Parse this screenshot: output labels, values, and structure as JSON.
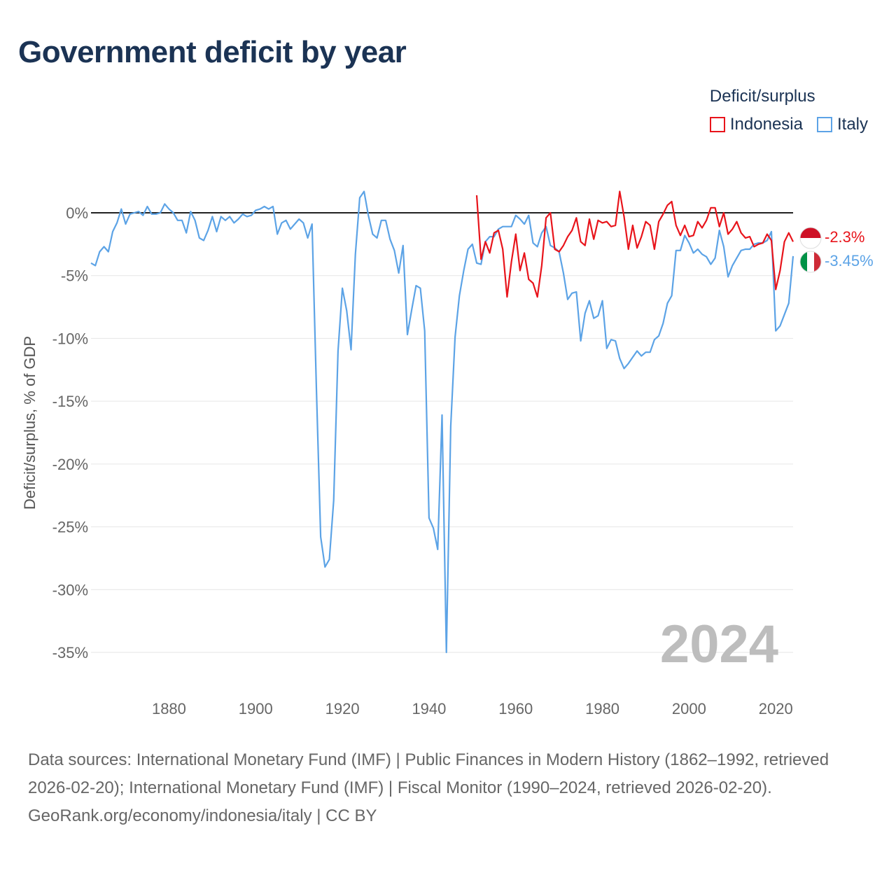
{
  "title": "Government deficit by year",
  "legend": {
    "title": "Deficit/surplus",
    "items": [
      {
        "name": "Indonesia",
        "color": "#e8141b"
      },
      {
        "name": "Italy",
        "color": "#5ca3e6"
      }
    ]
  },
  "year_label": "2024",
  "footer": {
    "sources": "Data sources: International Monetary Fund (IMF) | Public Finances in Modern History (1862–1992, retrieved 2026-02-20); International Monetary Fund (IMF) | Fiscal Monitor (1990–2024, retrieved 2026-02-20).",
    "attribution": "GeoRank.org/economy/indonesia/italy | CC BY"
  },
  "chart_data": {
    "type": "line",
    "title": "Government deficit by year",
    "ylabel": "Deficit/surplus, % of GDP",
    "xlabel": "",
    "xlim": [
      1862,
      2024
    ],
    "ylim": [
      -37,
      3
    ],
    "xticks": [
      1880,
      1900,
      1920,
      1940,
      1960,
      1980,
      2000,
      2020
    ],
    "xtick_labels": [
      "1880",
      "1900",
      "1920",
      "1940",
      "1960",
      "1980",
      "2000",
      "2020"
    ],
    "yticks": [
      0,
      -5,
      -10,
      -15,
      -20,
      -25,
      -30,
      -35
    ],
    "ytick_labels": [
      "0%",
      "-5%",
      "-10%",
      "-15%",
      "-20%",
      "-25%",
      "-30%",
      "-35%"
    ],
    "grid": true,
    "legend_position": "top-right",
    "series": [
      {
        "name": "Italy",
        "color": "#5ca3e6",
        "end_label": "-3.45%",
        "x": [
          1862,
          1863,
          1864,
          1865,
          1866,
          1867,
          1868,
          1869,
          1870,
          1871,
          1872,
          1873,
          1874,
          1875,
          1876,
          1877,
          1878,
          1879,
          1880,
          1881,
          1882,
          1883,
          1884,
          1885,
          1886,
          1887,
          1888,
          1889,
          1890,
          1891,
          1892,
          1893,
          1894,
          1895,
          1896,
          1897,
          1898,
          1899,
          1900,
          1901,
          1902,
          1903,
          1904,
          1905,
          1906,
          1907,
          1908,
          1909,
          1910,
          1911,
          1912,
          1913,
          1914,
          1915,
          1916,
          1917,
          1918,
          1919,
          1920,
          1921,
          1922,
          1923,
          1924,
          1925,
          1926,
          1927,
          1928,
          1929,
          1930,
          1931,
          1932,
          1933,
          1934,
          1935,
          1936,
          1937,
          1938,
          1939,
          1940,
          1941,
          1942,
          1943,
          1944,
          1945,
          1946,
          1947,
          1948,
          1949,
          1950,
          1951,
          1952,
          1953,
          1954,
          1955,
          1956,
          1957,
          1958,
          1959,
          1960,
          1961,
          1962,
          1963,
          1964,
          1965,
          1966,
          1967,
          1968,
          1969,
          1970,
          1971,
          1972,
          1973,
          1974,
          1975,
          1976,
          1977,
          1978,
          1979,
          1980,
          1981,
          1982,
          1983,
          1984,
          1985,
          1986,
          1987,
          1988,
          1989,
          1990,
          1991,
          1992,
          1993,
          1994,
          1995,
          1996,
          1997,
          1998,
          1999,
          2000,
          2001,
          2002,
          2003,
          2004,
          2005,
          2006,
          2007,
          2008,
          2009,
          2010,
          2011,
          2012,
          2013,
          2014,
          2015,
          2016,
          2017,
          2018,
          2019,
          2020,
          2021,
          2022,
          2023,
          2024
        ],
        "y": [
          -4.0,
          -4.2,
          -3.1,
          -2.7,
          -3.1,
          -1.5,
          -0.8,
          0.3,
          -0.9,
          -0.1,
          0.0,
          0.1,
          -0.2,
          0.5,
          -0.1,
          -0.1,
          0.0,
          0.7,
          0.3,
          0.0,
          -0.6,
          -0.6,
          -1.6,
          0.1,
          -0.6,
          -2.0,
          -2.2,
          -1.4,
          -0.3,
          -1.5,
          -0.3,
          -0.6,
          -0.3,
          -0.8,
          -0.5,
          -0.1,
          -0.3,
          -0.2,
          0.2,
          0.3,
          0.5,
          0.3,
          0.5,
          -1.7,
          -0.8,
          -0.6,
          -1.3,
          -0.9,
          -0.5,
          -0.8,
          -2.0,
          -0.9,
          -14.0,
          -25.8,
          -28.2,
          -27.6,
          -22.9,
          -11.0,
          -6.0,
          -7.8,
          -10.9,
          -3.3,
          1.2,
          1.7,
          -0.2,
          -1.7,
          -2.0,
          -0.6,
          -0.6,
          -2.1,
          -3.0,
          -4.8,
          -2.6,
          -9.7,
          -7.7,
          -5.8,
          -6.0,
          -9.4,
          -24.3,
          -25.1,
          -26.8,
          -16.1,
          -35.0,
          -17.0,
          -9.9,
          -6.6,
          -4.6,
          -2.9,
          -2.5,
          -4.0,
          -4.1,
          -2.3,
          -1.9,
          -1.9,
          -1.3,
          -1.1,
          -1.1,
          -1.1,
          -0.2,
          -0.5,
          -0.9,
          -0.2,
          -2.4,
          -2.7,
          -1.6,
          -1.1,
          -2.6,
          -2.8,
          -3.1,
          -4.8,
          -6.9,
          -6.4,
          -6.3,
          -10.2,
          -8.0,
          -7.0,
          -8.4,
          -8.2,
          -7.0,
          -10.8,
          -10.1,
          -10.2,
          -11.6,
          -12.4,
          -12.0,
          -11.5,
          -11.0,
          -11.4,
          -11.1,
          -11.1,
          -10.1,
          -9.8,
          -8.8,
          -7.2,
          -6.6,
          -3.0,
          -3.0,
          -1.8,
          -2.4,
          -3.2,
          -2.9,
          -3.3,
          -3.5,
          -4.1,
          -3.6,
          -1.4,
          -2.7,
          -5.1,
          -4.2,
          -3.6,
          -3.0,
          -2.9,
          -2.9,
          -2.5,
          -2.4,
          -2.4,
          -2.2,
          -1.5,
          -9.4,
          -9.0,
          -8.1,
          -7.2,
          -3.45
        ]
      },
      {
        "name": "Indonesia",
        "color": "#e8141b",
        "end_label": "-2.3%",
        "x": [
          1951,
          1952,
          1953,
          1954,
          1955,
          1956,
          1957,
          1958,
          1959,
          1960,
          1961,
          1962,
          1963,
          1964,
          1965,
          1966,
          1967,
          1968,
          1969,
          1970,
          1971,
          1972,
          1973,
          1974,
          1975,
          1976,
          1977,
          1978,
          1979,
          1980,
          1981,
          1982,
          1983,
          1984,
          1985,
          1986,
          1987,
          1988,
          1989,
          1990,
          1991,
          1992,
          1993,
          1994,
          1995,
          1996,
          1997,
          1998,
          1999,
          2000,
          2001,
          2002,
          2003,
          2004,
          2005,
          2006,
          2007,
          2008,
          2009,
          2010,
          2011,
          2012,
          2013,
          2014,
          2015,
          2016,
          2017,
          2018,
          2019,
          2020,
          2021,
          2022,
          2023,
          2024
        ],
        "y": [
          1.4,
          -3.7,
          -2.3,
          -3.2,
          -1.6,
          -1.4,
          -2.9,
          -6.7,
          -3.9,
          -1.7,
          -4.6,
          -3.2,
          -5.3,
          -5.6,
          -6.7,
          -4.2,
          -0.4,
          0.0,
          -2.9,
          -3.1,
          -2.6,
          -1.9,
          -1.4,
          -0.4,
          -2.3,
          -2.6,
          -0.5,
          -2.1,
          -0.6,
          -0.8,
          -0.7,
          -1.1,
          -1.0,
          1.7,
          -0.3,
          -2.9,
          -1.0,
          -2.8,
          -1.9,
          -0.7,
          -1.0,
          -2.9,
          -0.7,
          -0.1,
          0.6,
          0.9,
          -1.0,
          -1.8,
          -1.0,
          -1.9,
          -1.8,
          -0.7,
          -1.2,
          -0.6,
          0.4,
          0.4,
          -1.1,
          0.0,
          -1.7,
          -1.3,
          -0.7,
          -1.6,
          -2.0,
          -1.9,
          -2.7,
          -2.5,
          -2.4,
          -1.7,
          -2.2,
          -6.1,
          -4.6,
          -2.3,
          -1.6,
          -2.3
        ]
      }
    ]
  }
}
